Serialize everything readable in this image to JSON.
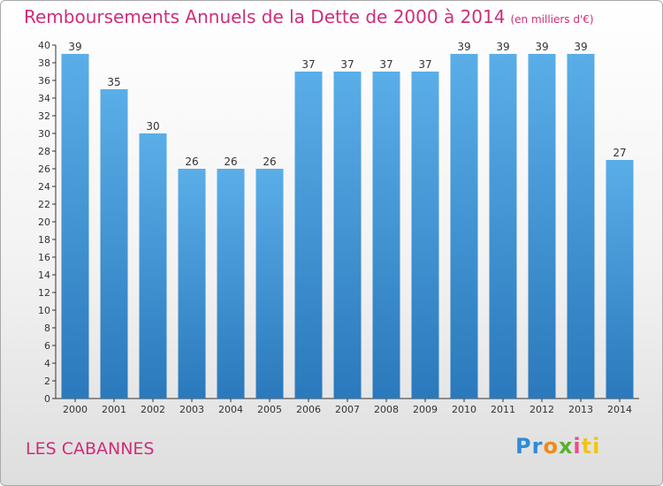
{
  "header": {
    "title": "Remboursements Annuels de la Dette de 2000 à 2014",
    "subtitle": "(en milliers d'€)"
  },
  "footer": {
    "place": "LES CABANNES",
    "logo": [
      "Pr",
      "o",
      "x",
      "i",
      "ti"
    ]
  },
  "colors": {
    "title": "#cf2d79",
    "bar_top": "#5aaee8",
    "bar_bottom": "#2a79bc"
  },
  "chart_data": {
    "type": "bar",
    "title": "Remboursements Annuels de la Dette de 2000 à 2014",
    "subtitle": "(en milliers d'€)",
    "categories": [
      "2000",
      "2001",
      "2002",
      "2003",
      "2004",
      "2005",
      "2006",
      "2007",
      "2008",
      "2009",
      "2010",
      "2011",
      "2012",
      "2013",
      "2014"
    ],
    "values": [
      39,
      35,
      30,
      26,
      26,
      26,
      37,
      37,
      37,
      37,
      39,
      39,
      39,
      39,
      27
    ],
    "xlabel": "",
    "ylabel": "",
    "ylim": [
      0,
      40
    ],
    "ytick_step": 2,
    "grid": false,
    "data_labels": true
  }
}
